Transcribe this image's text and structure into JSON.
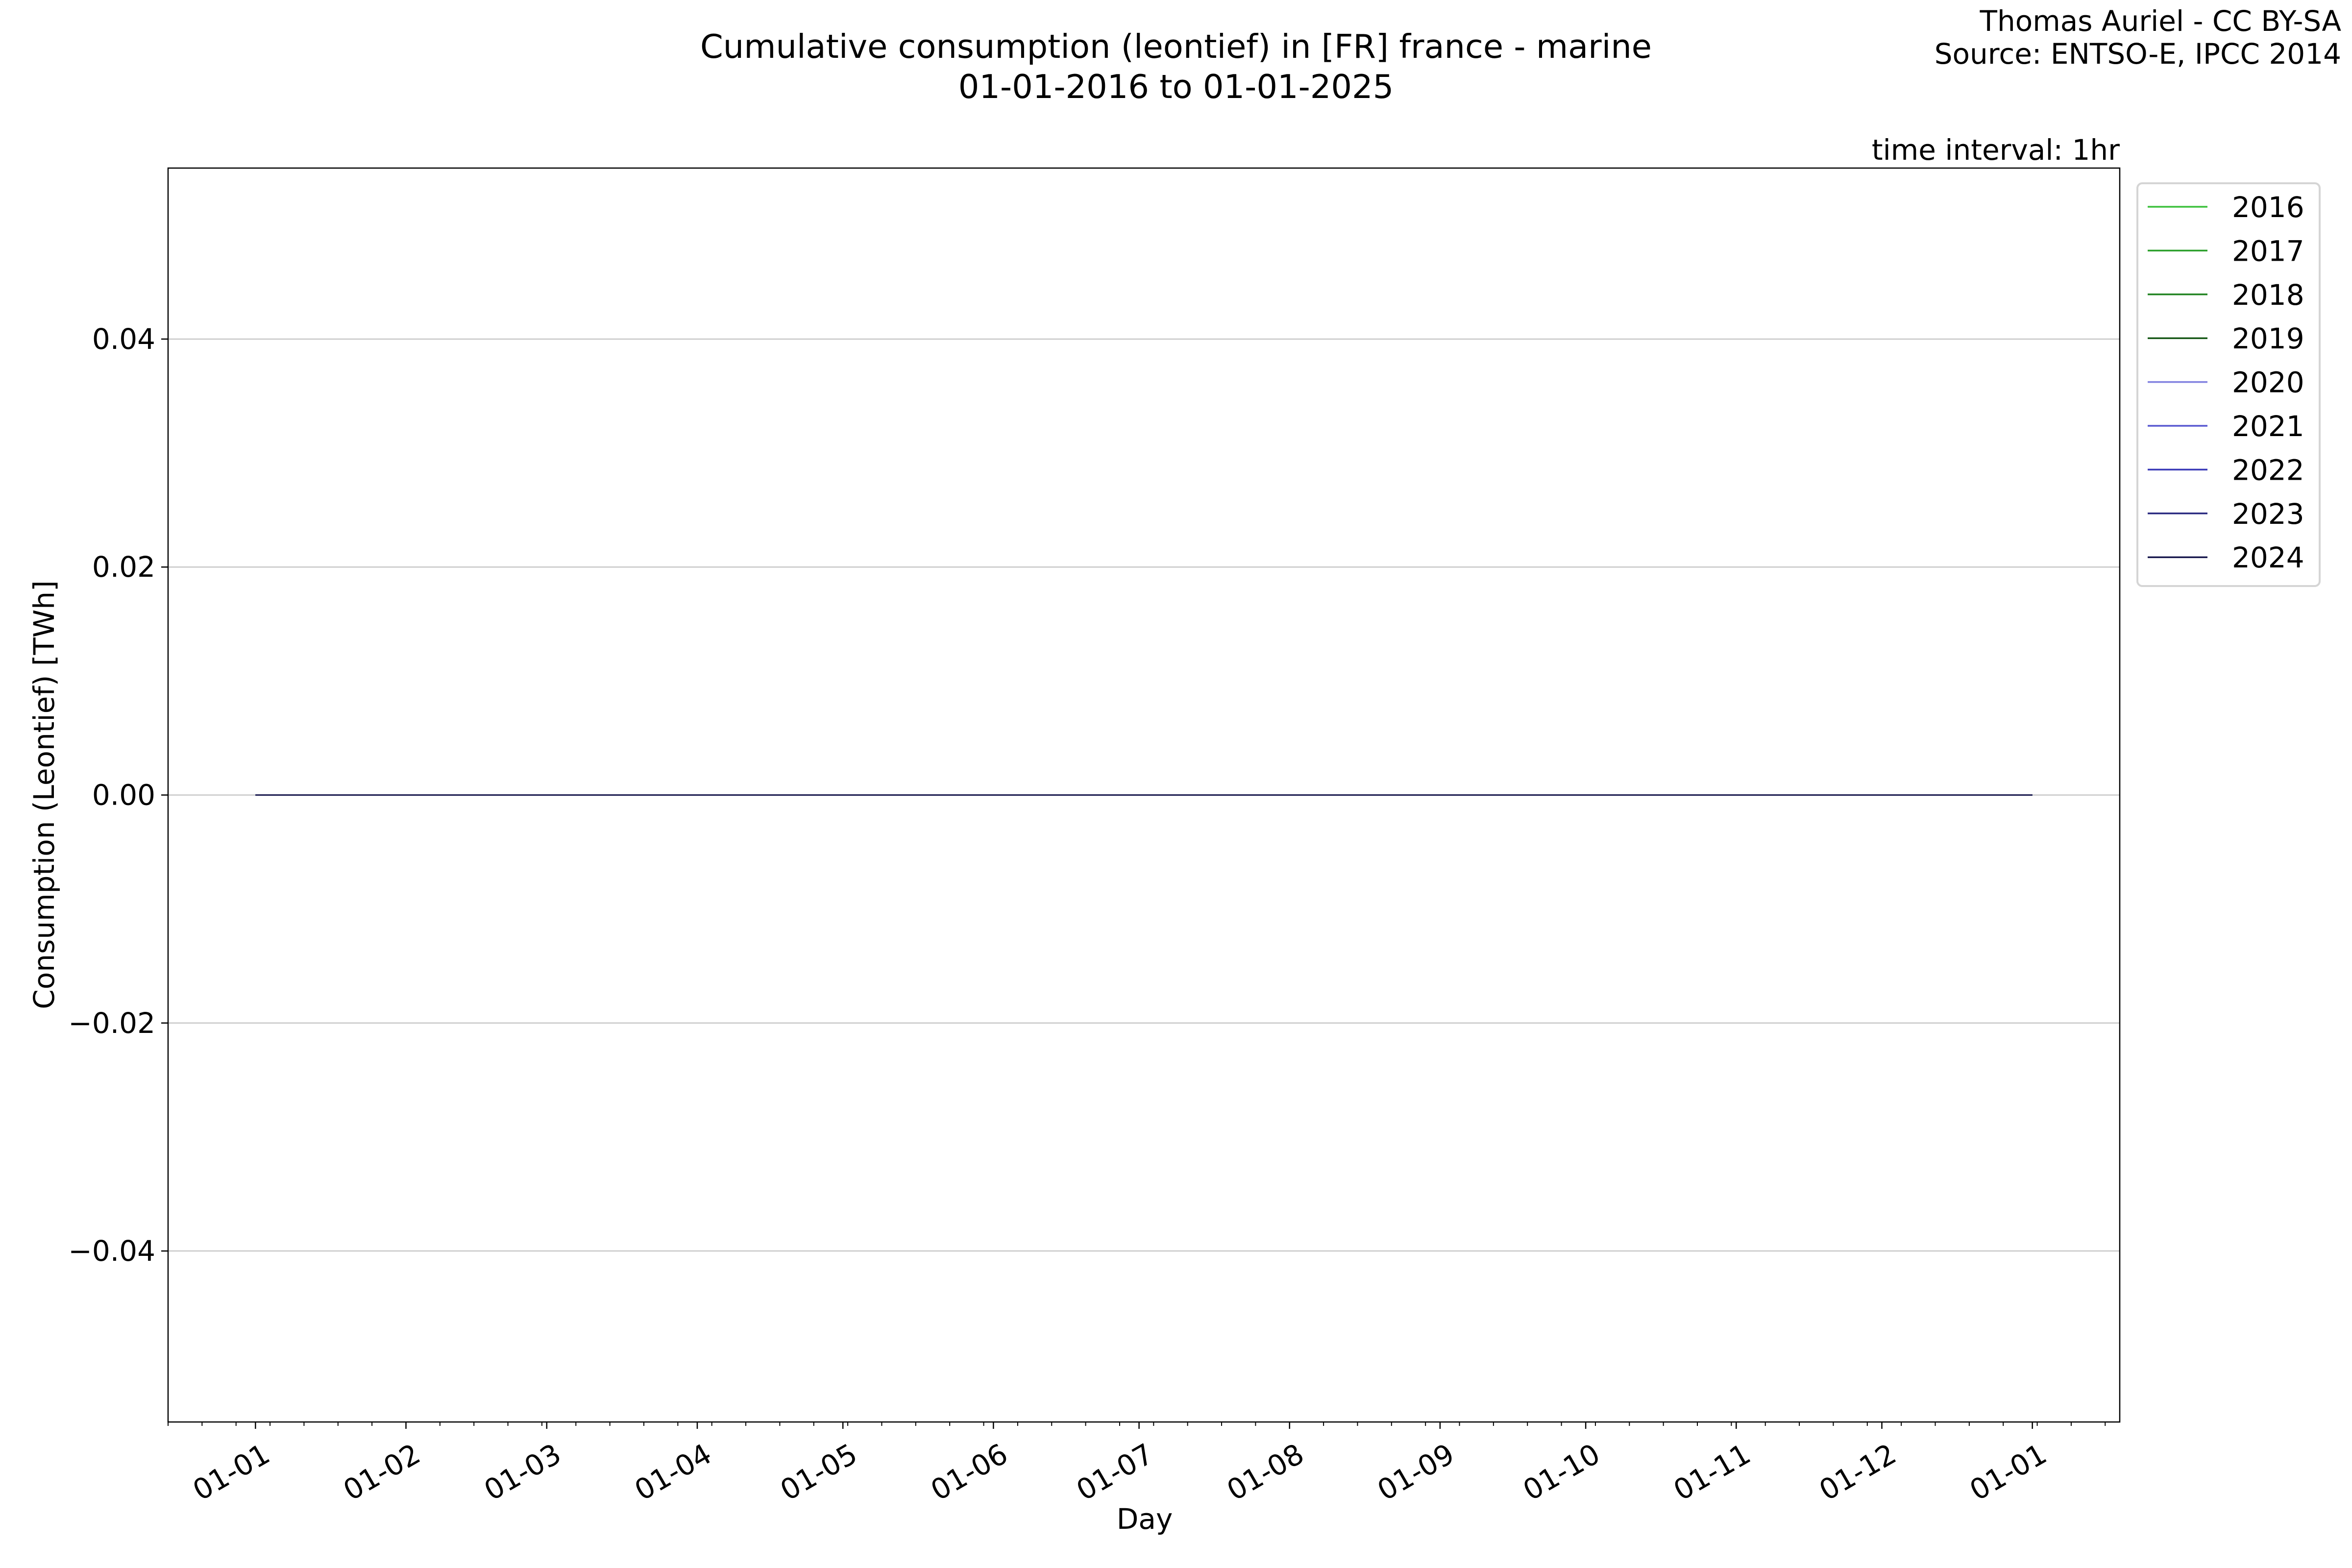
{
  "chart_data": {
    "type": "line",
    "title": "Cumulative consumption (leontief) in [FR] france - marine",
    "subtitle": "01-01-2016 to 01-01-2025",
    "credit": [
      "Thomas Auriel - CC BY-SA",
      "Source: ENTSO-E, IPCC 2014"
    ],
    "annotation": "time interval: 1hr",
    "xlabel": "Day",
    "ylabel": "Consumption (Leontief) [TWh]",
    "xlim": [
      "2015-12-14",
      "2017-01-19"
    ],
    "ylim": [
      -0.055,
      0.055
    ],
    "x_ticks": [
      {
        "date": "2016-01-01",
        "label": "01-01"
      },
      {
        "date": "2016-02-01",
        "label": "01-02"
      },
      {
        "date": "2016-03-01",
        "label": "01-03"
      },
      {
        "date": "2016-04-01",
        "label": "01-04"
      },
      {
        "date": "2016-05-01",
        "label": "01-05"
      },
      {
        "date": "2016-06-01",
        "label": "01-06"
      },
      {
        "date": "2016-07-01",
        "label": "01-07"
      },
      {
        "date": "2016-08-01",
        "label": "01-08"
      },
      {
        "date": "2016-09-01",
        "label": "01-09"
      },
      {
        "date": "2016-10-01",
        "label": "01-10"
      },
      {
        "date": "2016-11-01",
        "label": "01-11"
      },
      {
        "date": "2016-12-01",
        "label": "01-12"
      },
      {
        "date": "2017-01-01",
        "label": "01-01"
      }
    ],
    "y_ticks": [
      {
        "value": 0.04,
        "label": "0.04"
      },
      {
        "value": 0.02,
        "label": "0.02"
      },
      {
        "value": 0.0,
        "label": "0.00"
      },
      {
        "value": -0.02,
        "label": "−0.02"
      },
      {
        "value": -0.04,
        "label": "−0.04"
      }
    ],
    "grid": "y-major",
    "legend_placement": "outside-top-right",
    "series": [
      {
        "name": "2016",
        "color": "#3cc03c",
        "x": [
          "2016-01-01",
          "2017-01-01"
        ],
        "y": [
          0,
          0
        ]
      },
      {
        "name": "2017",
        "color": "#2ca02c",
        "x": [
          "2016-01-01",
          "2017-01-01"
        ],
        "y": [
          0,
          0
        ]
      },
      {
        "name": "2018",
        "color": "#228422",
        "x": [
          "2016-01-01",
          "2017-01-01"
        ],
        "y": [
          0,
          0
        ]
      },
      {
        "name": "2019",
        "color": "#1a5a1a",
        "x": [
          "2016-01-01",
          "2017-01-01"
        ],
        "y": [
          0,
          0
        ]
      },
      {
        "name": "2020",
        "color": "#8080e0",
        "x": [
          "2016-01-01",
          "2017-01-01"
        ],
        "y": [
          0,
          0
        ]
      },
      {
        "name": "2021",
        "color": "#5858d0",
        "x": [
          "2016-01-01",
          "2017-01-01"
        ],
        "y": [
          0,
          0
        ]
      },
      {
        "name": "2022",
        "color": "#3a3ab8",
        "x": [
          "2016-01-01",
          "2017-01-01"
        ],
        "y": [
          0,
          0
        ]
      },
      {
        "name": "2023",
        "color": "#2a2a80",
        "x": [
          "2016-01-01",
          "2017-01-01"
        ],
        "y": [
          0,
          0
        ]
      },
      {
        "name": "2024",
        "color": "#1c1c50",
        "x": [
          "2016-01-01",
          "2017-01-01"
        ],
        "y": [
          0,
          0
        ]
      }
    ]
  }
}
